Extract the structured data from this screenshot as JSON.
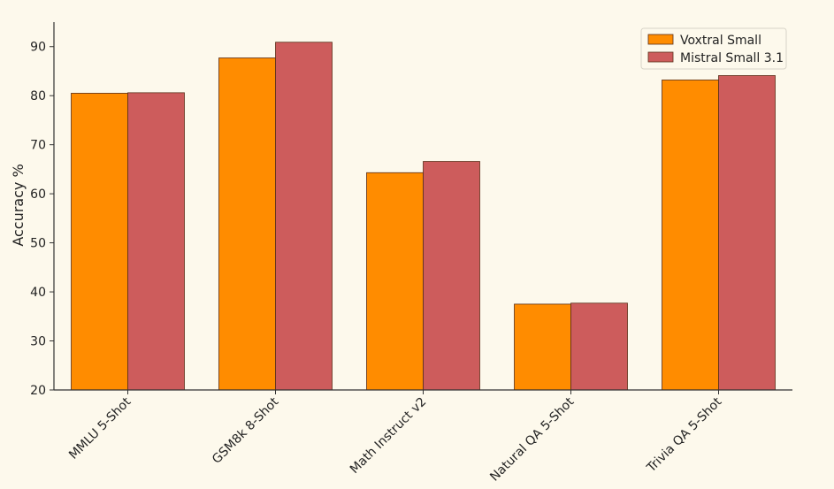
{
  "chart_data": {
    "type": "bar",
    "title": "",
    "xlabel": "",
    "ylabel": "Accuracy %",
    "ylim": [
      20,
      95
    ],
    "yticks": [
      20,
      30,
      40,
      50,
      60,
      70,
      80,
      90
    ],
    "categories": [
      "MMLU 5-Shot",
      "GSM8k 8-Shot",
      "Math Instruct v2",
      "Natural QA 5-Shot",
      "Trivia QA 5-Shot"
    ],
    "series": [
      {
        "name": "Voxtral Small",
        "color": "#ff8c00",
        "values": [
          80.5,
          87.7,
          64.3,
          37.5,
          83.2
        ]
      },
      {
        "name": "Mistral Small 3.1",
        "color": "#cd5c5c",
        "values": [
          80.6,
          90.9,
          66.6,
          37.7,
          84.1
        ]
      }
    ],
    "legend_position": "top-right",
    "grid": false
  }
}
